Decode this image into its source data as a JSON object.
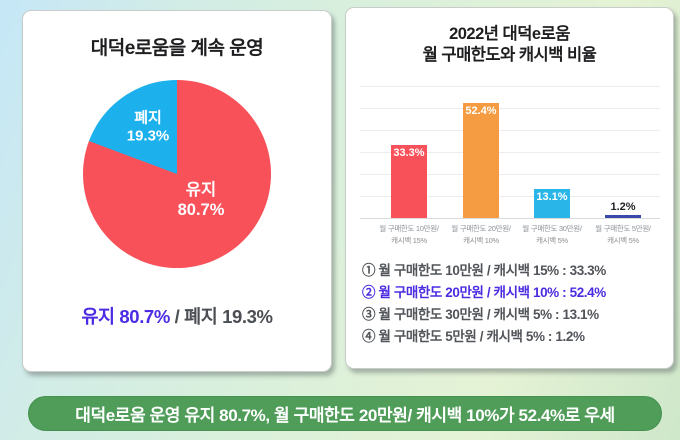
{
  "left_card": {
    "title": "대덕e로움을 계속 운영",
    "pie_label_abolish": {
      "line1": "폐지",
      "line2": "19.3%"
    },
    "pie_label_keep": {
      "line1": "유지",
      "line2": "80.7%"
    },
    "summary": {
      "keep": "유지 80.7%",
      "divider": " / ",
      "abolish": "폐지 19.3%"
    }
  },
  "right_card": {
    "title_line1": "2022년 대덕e로움",
    "title_line2": "월 구매한도와 캐시백 비율",
    "list": [
      {
        "text": "① 월 구매한도 10만원 / 캐시백 15% : 33.3%",
        "highlighted": false
      },
      {
        "text": "② 월 구매한도 20만원 / 캐시백 10% : 52.4%",
        "highlighted": true
      },
      {
        "text": "③ 월 구매한도 30만원 / 캐시백 5% : 13.1%",
        "highlighted": false
      },
      {
        "text": "④ 월 구매한도 5만원 / 캐시백 5% : 1.2%",
        "highlighted": false
      }
    ]
  },
  "banner": {
    "text": "대덕e로움 운영 유지 80.7%, 월 구매한도 20만원/ 캐시백 10%가 52.4%로 우세",
    "color": "#4f9d59"
  },
  "colors": {
    "keep_red": "#f8515a",
    "abolish_blue": "#1cb0ec",
    "highlight_violet": "#4c2be2",
    "banner_green": "#4f9d59"
  },
  "chart_data": [
    {
      "type": "pie",
      "title": "대덕e로움을 계속 운영",
      "slices": [
        {
          "label": "유지",
          "value": 80.7,
          "color": "#f8515a"
        },
        {
          "label": "폐지",
          "value": 19.3,
          "color": "#1cb0ec"
        }
      ],
      "start_angle": "12-oclock",
      "direction": "clockwise",
      "data_labels": [
        "유지 80.7%",
        "폐지 19.3%"
      ]
    },
    {
      "type": "bar",
      "title": "2022년 대덕e로움 월 구매한도와 캐시백 비율",
      "categories": [
        "월 구매한도 10만원/ 캐시백 15%",
        "월 구매한도 20만원/ 캐시백 10%",
        "월 구매한도 30만원/ 캐시백 5%",
        "월 구매한도 5만원/ 캐시백 5%"
      ],
      "values": [
        33.3,
        52.4,
        13.1,
        1.2
      ],
      "data_labels": [
        "33.3%",
        "52.4%",
        "13.1%",
        "1.2%"
      ],
      "bar_colors": [
        "#f8515a",
        "#f59b41",
        "#29b5e8",
        "#3a49a7"
      ],
      "ylim": [
        0,
        60
      ],
      "grid": true,
      "gridline_step": 10,
      "legend": false
    }
  ]
}
